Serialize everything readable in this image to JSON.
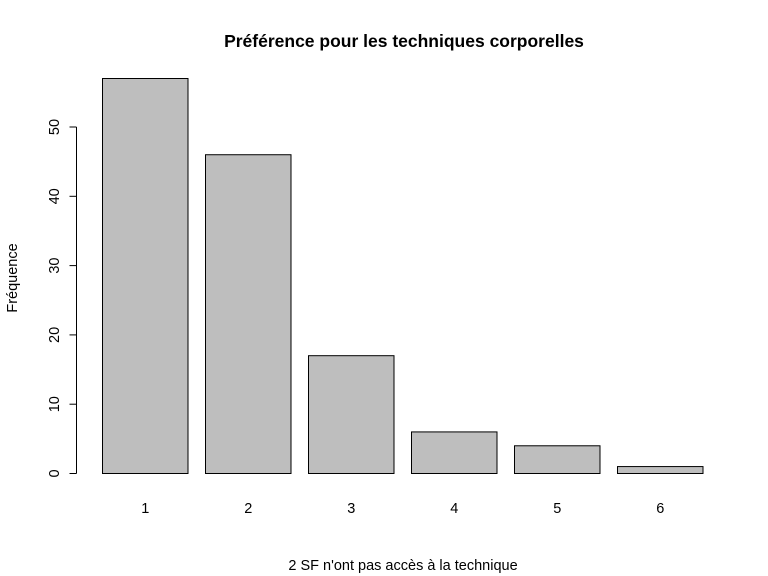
{
  "chart_data": {
    "type": "bar",
    "title": "Préférence pour les techniques corporelles",
    "xlabel": "2 SF n'ont pas accès à la technique",
    "ylabel": "Fréquence",
    "categories": [
      "1",
      "2",
      "3",
      "4",
      "5",
      "6"
    ],
    "values": [
      57,
      46,
      17,
      6,
      4,
      1
    ],
    "ylim": [
      0,
      57
    ],
    "yticks": [
      "0",
      "10",
      "20",
      "30",
      "40",
      "50"
    ],
    "bar_color": "#bebebe",
    "bar_border": "#000000",
    "grid": false,
    "legend": "none"
  }
}
